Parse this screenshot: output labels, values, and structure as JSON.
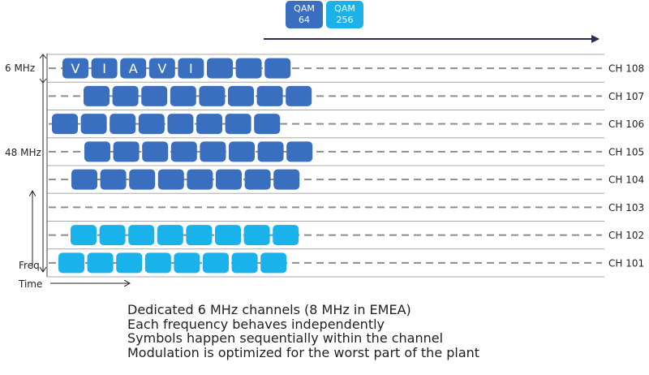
{
  "legend": {
    "qam64": {
      "line1": "QAM",
      "line2": "64",
      "color": "#3a6ebe"
    },
    "qam256": {
      "line1": "QAM",
      "line2": "256",
      "color": "#1ab2ea"
    }
  },
  "labels": {
    "channel_width": "6 MHz",
    "total_width": "48 MHz",
    "freq_axis": "Freq",
    "time_axis": "Time"
  },
  "colors": {
    "grid_line": "#a8a8a8",
    "dashed_line": "#8c8c8c",
    "qam64": "#3a6ebe",
    "qam256": "#1ab2ea",
    "arrow": "#2a2f5a"
  },
  "channels": [
    {
      "name": "CH 108",
      "modulation": "QAM 64",
      "symbols": 8,
      "letters": [
        "V",
        "I",
        "A",
        "V",
        "I"
      ]
    },
    {
      "name": "CH 107",
      "modulation": "QAM 64",
      "symbols": 8
    },
    {
      "name": "CH 106",
      "modulation": "QAM 64",
      "symbols": 8
    },
    {
      "name": "CH 105",
      "modulation": "QAM 64",
      "symbols": 8
    },
    {
      "name": "CH 104",
      "modulation": "QAM 64",
      "symbols": 8
    },
    {
      "name": "CH 103",
      "modulation": "none",
      "symbols": 0
    },
    {
      "name": "CH 102",
      "modulation": "QAM 256",
      "symbols": 8
    },
    {
      "name": "CH 101",
      "modulation": "QAM 256",
      "symbols": 8
    }
  ],
  "caption": [
    "Dedicated 6 MHz channels (8 MHz in EMEA)",
    "Each frequency behaves independently",
    "Symbols happen sequentially within the channel",
    "Modulation is optimized for the worst part of the plant"
  ]
}
